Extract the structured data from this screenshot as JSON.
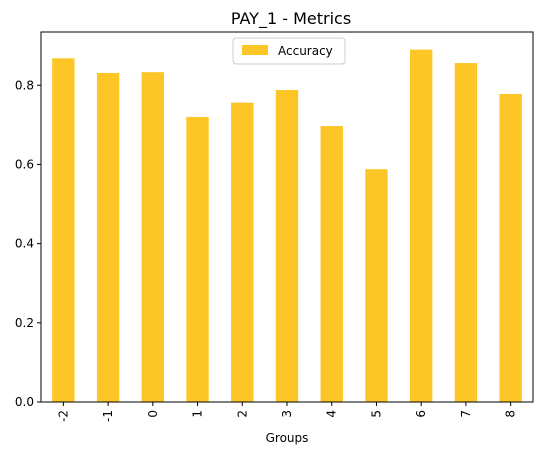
{
  "chart_data": {
    "type": "bar",
    "title": "PAY_1 - Metrics",
    "xlabel": "Groups",
    "ylabel": "",
    "categories": [
      "-2",
      "-1",
      "0",
      "1",
      "2",
      "3",
      "4",
      "5",
      "6",
      "7",
      "8"
    ],
    "series": [
      {
        "name": "Accuracy",
        "color": "#fcc626",
        "values": [
          0.868,
          0.831,
          0.833,
          0.72,
          0.756,
          0.788,
          0.697,
          0.588,
          0.89,
          0.856,
          0.778
        ]
      }
    ],
    "ylim": [
      0,
      0.9345
    ],
    "yticks": [
      0.0,
      0.2,
      0.4,
      0.6,
      0.8
    ],
    "ytick_labels": [
      "0.0",
      "0.2",
      "0.4",
      "0.6",
      "0.8"
    ],
    "grid": false,
    "legend_position": "top-center",
    "x_tick_rotation": 90
  }
}
